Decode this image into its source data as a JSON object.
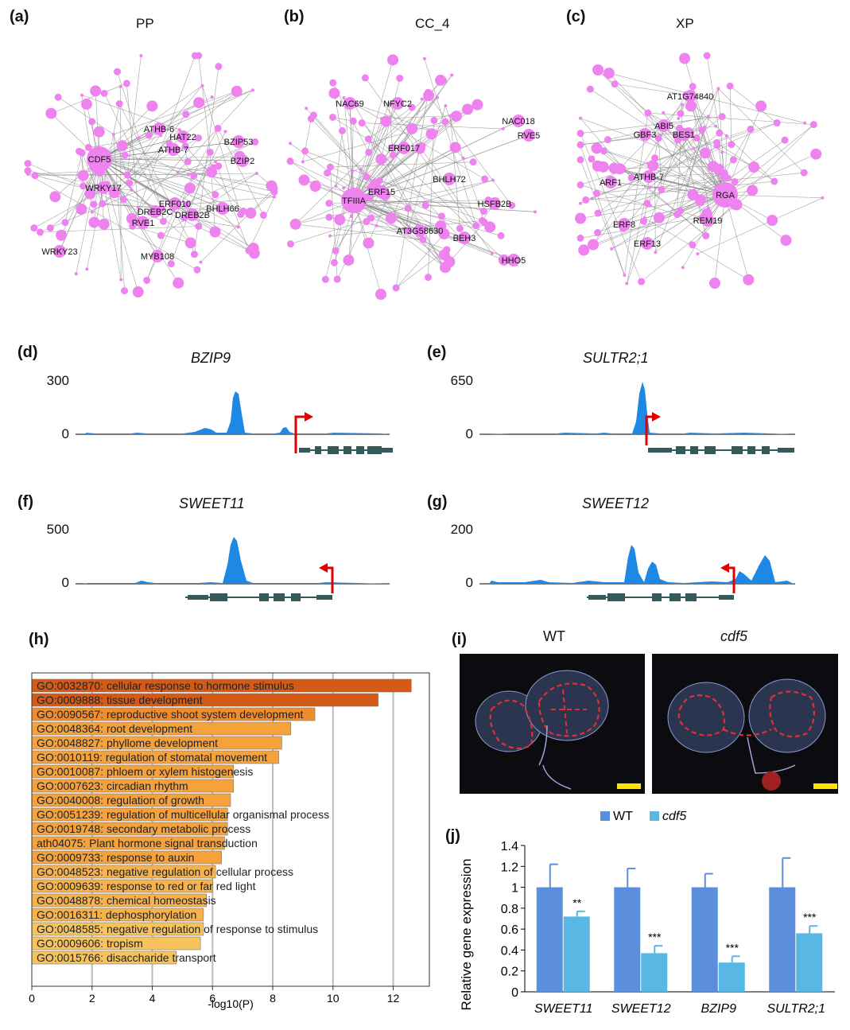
{
  "panels": {
    "a": {
      "label": "(a)",
      "title": "PP"
    },
    "b": {
      "label": "(b)",
      "title": "CC_4"
    },
    "c": {
      "label": "(c)",
      "title": "XP"
    },
    "d": {
      "label": "(d)",
      "gene": "BZIP9",
      "ymax": "300",
      "ymin": "0"
    },
    "e": {
      "label": "(e)",
      "gene": "SULTR2;1",
      "ymax": "650",
      "ymin": "0"
    },
    "f": {
      "label": "(f)",
      "gene": "SWEET11",
      "ymax": "500",
      "ymin": "0"
    },
    "g": {
      "label": "(g)",
      "gene": "SWEET12",
      "ymax": "200",
      "ymin": "0"
    },
    "h": {
      "label": "(h)"
    },
    "i": {
      "label": "(i)",
      "wt": "WT",
      "mutant": "cdf5"
    },
    "j": {
      "label": "(j)"
    }
  },
  "networks": {
    "a": {
      "hub": "CDF5",
      "nodes": [
        "ATHB-6",
        "HAT22",
        "ATHB-7",
        "BZIP53",
        "BZIP2",
        "WRKY17",
        "ERF010",
        "BHLH66",
        "DREB2C",
        "DREB2B",
        "RVE1",
        "MYB108",
        "WRKY23"
      ]
    },
    "b": {
      "hub": "TFIIIA",
      "nodes": [
        "NAC69",
        "NFYC2",
        "NAC018",
        "RVE5",
        "ERF017",
        "BHLH72",
        "ERF15",
        "HSFB2B",
        "AT3G58630",
        "BEH3",
        "HHO5"
      ]
    },
    "c": {
      "hub": "RGA",
      "nodes": [
        "AT1G74840",
        "ABI5",
        "GBF3",
        "BES1",
        "ARF1",
        "ATHB-7",
        "ERF8",
        "REM19",
        "ERF13"
      ]
    }
  },
  "colors": {
    "node": "#ee82ee",
    "edge": "#8c8c8c",
    "track": "#1e88e5",
    "tss": "#e00000",
    "gene_model": "#355a5a",
    "wt": "#5b8fdc",
    "cdf5": "#59b7e3"
  },
  "chart_data": [
    {
      "type": "bar",
      "orientation": "horizontal",
      "categories": [
        "GO:0032870: cellular response to hormone stimulus",
        "GO:0009888: tissue development",
        "GO:0090567: reproductive shoot system development",
        "GO:0048364: root development",
        "GO:0048827: phyllome development",
        "GO:0010119: regulation of stomatal movement",
        "GO:0010087: phloem or xylem histogenesis",
        "GO:0007623: circadian rhythm",
        "GO:0040008: regulation of growth",
        "GO:0051239: regulation of multicellular organismal process",
        "GO:0019748: secondary metabolic process",
        "ath04075: Plant hormone signal transduction",
        "GO:0009733: response to auxin",
        "GO:0048523: negative regulation of cellular process",
        "GO:0009639: response to red or far red light",
        "GO:0048878: chemical homeostasis",
        "GO:0016311: dephosphorylation",
        "GO:0048585: negative regulation of response to stimulus",
        "GO:0009606: tropism",
        "GO:0015766: disaccharide transport"
      ],
      "values": [
        12.6,
        11.5,
        9.4,
        8.6,
        8.3,
        8.2,
        6.7,
        6.7,
        6.6,
        6.5,
        6.5,
        6.4,
        6.3,
        6.1,
        6.0,
        5.8,
        5.7,
        5.7,
        5.6,
        4.8
      ],
      "colors": [
        "#d35a17",
        "#d35a17",
        "#f08c2c",
        "#f5a23c",
        "#f5a23c",
        "#f5a23c",
        "#f5a23c",
        "#f5a23c",
        "#f5a23c",
        "#f5a23c",
        "#f5a23c",
        "#f5a23c",
        "#f5a23c",
        "#f6b24c",
        "#f6b24c",
        "#f6b24c",
        "#f6b24c",
        "#f6c35c",
        "#f6c35c",
        "#f6c35c"
      ],
      "xlabel": "-log10(P)",
      "xlim": [
        0,
        13.2
      ],
      "xticks": [
        "0",
        "2",
        "4",
        "6",
        "8",
        "10",
        "12"
      ],
      "grid": true
    },
    {
      "type": "bar",
      "categories": [
        "SWEET11",
        "SWEET12",
        "BZIP9",
        "SULTR2;1"
      ],
      "series": [
        {
          "name": "WT",
          "values": [
            1,
            1,
            1,
            1
          ],
          "errors": [
            0.22,
            0.18,
            0.13,
            0.28
          ]
        },
        {
          "name": "cdf5",
          "values": [
            0.72,
            0.37,
            0.28,
            0.56
          ],
          "errors": [
            0.05,
            0.07,
            0.06,
            0.07
          ],
          "significance": [
            "**",
            "***",
            "***",
            "***"
          ]
        }
      ],
      "ylabel": "Relative gene expression",
      "ylim": [
        0,
        1.4
      ],
      "yticks": [
        "0",
        "0.2",
        "0.4",
        "0.6",
        "0.8",
        "1",
        "1.2",
        "1.4"
      ],
      "legend": "top"
    }
  ]
}
